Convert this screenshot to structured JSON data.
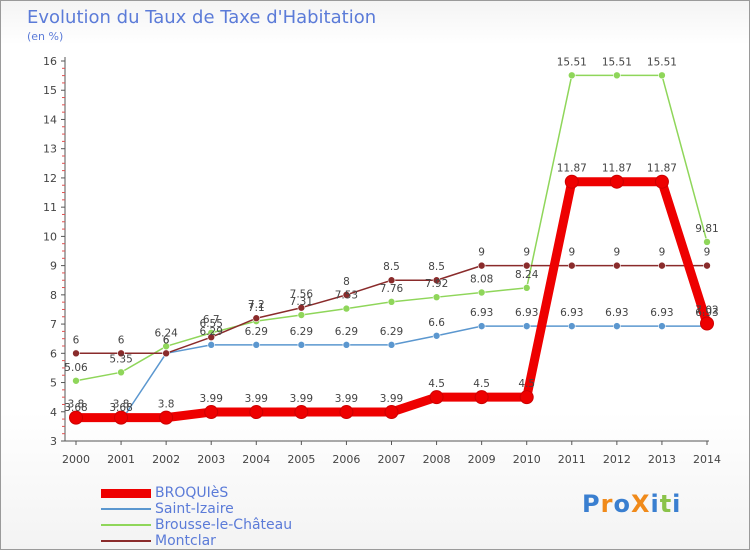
{
  "chart_data": {
    "type": "line",
    "title": "Evolution du Taux de Taxe d'Habitation",
    "subtitle": "(en %)",
    "xlabel": "",
    "ylabel": "",
    "x": [
      "2000",
      "2001",
      "2002",
      "2003",
      "2004",
      "2005",
      "2006",
      "2007",
      "2008",
      "2009",
      "2010",
      "2011",
      "2012",
      "2013",
      "2014"
    ],
    "ylim": [
      3,
      16
    ],
    "yticks": [
      "3",
      "4",
      "5",
      "6",
      "7",
      "8",
      "9",
      "10",
      "11",
      "12",
      "13",
      "14",
      "15",
      "16"
    ],
    "grid": false,
    "legend_position": "bottom-left",
    "series": [
      {
        "name": "BROQUIèS",
        "color": "#ee0000",
        "values": [
          3.8,
          3.8,
          3.8,
          3.99,
          3.99,
          3.99,
          3.99,
          3.99,
          4.5,
          4.5,
          4.5,
          11.87,
          11.87,
          11.87,
          7.02
        ],
        "labels": [
          "3.8",
          "3.8",
          "3.8",
          "3.99",
          "3.99",
          "3.99",
          "3.99",
          "3.99",
          "4.5",
          "4.5",
          "4.5",
          "11.87",
          "11.87",
          "11.87",
          "7.02"
        ]
      },
      {
        "name": "Saint-Izaire",
        "color": "#5b97cf",
        "values": [
          3.68,
          3.68,
          6.0,
          6.29,
          6.29,
          6.29,
          6.29,
          6.29,
          6.6,
          6.93,
          6.93,
          6.93,
          6.93,
          6.93,
          6.93
        ],
        "labels": [
          "3.68",
          "3.68",
          "6",
          "6.29",
          "6.29",
          "6.29",
          "6.29",
          "6.29",
          "6.6",
          "6.93",
          "6.93",
          "6.93",
          "6.93",
          "6.93",
          "6.93"
        ]
      },
      {
        "name": "Brousse-le-Château",
        "color": "#8fd65a",
        "values": [
          5.06,
          5.35,
          6.24,
          6.7,
          7.1,
          7.31,
          7.53,
          7.76,
          7.92,
          8.08,
          8.24,
          15.51,
          15.51,
          15.51,
          9.81
        ],
        "labels": [
          "5.06",
          "5.35",
          "6.24",
          "6.7",
          "7.1",
          "7.31",
          "7.53",
          "7.76",
          "7.92",
          "8.08",
          "8.24",
          "15.51",
          "15.51",
          "15.51",
          "9.81"
        ]
      },
      {
        "name": "Montclar",
        "color": "#8a2b2b",
        "values": [
          6,
          6,
          6,
          6.55,
          7.2,
          7.56,
          8,
          8.5,
          8.5,
          9,
          9,
          9,
          9,
          9,
          9
        ],
        "labels": [
          "6",
          "6",
          "6",
          "6.55",
          "7.2",
          "7.56",
          "8",
          "8.5",
          "8.5",
          "9",
          "9",
          "9",
          "9",
          "9",
          "9"
        ]
      }
    ]
  },
  "logo": {
    "text": "ProXiti",
    "colors": [
      "#3a7fd0",
      "#f08a1a",
      "#3a7fd0",
      "#f08a1a",
      "#3a7fd0",
      "#8bc34a",
      "#3a7fd0"
    ]
  }
}
